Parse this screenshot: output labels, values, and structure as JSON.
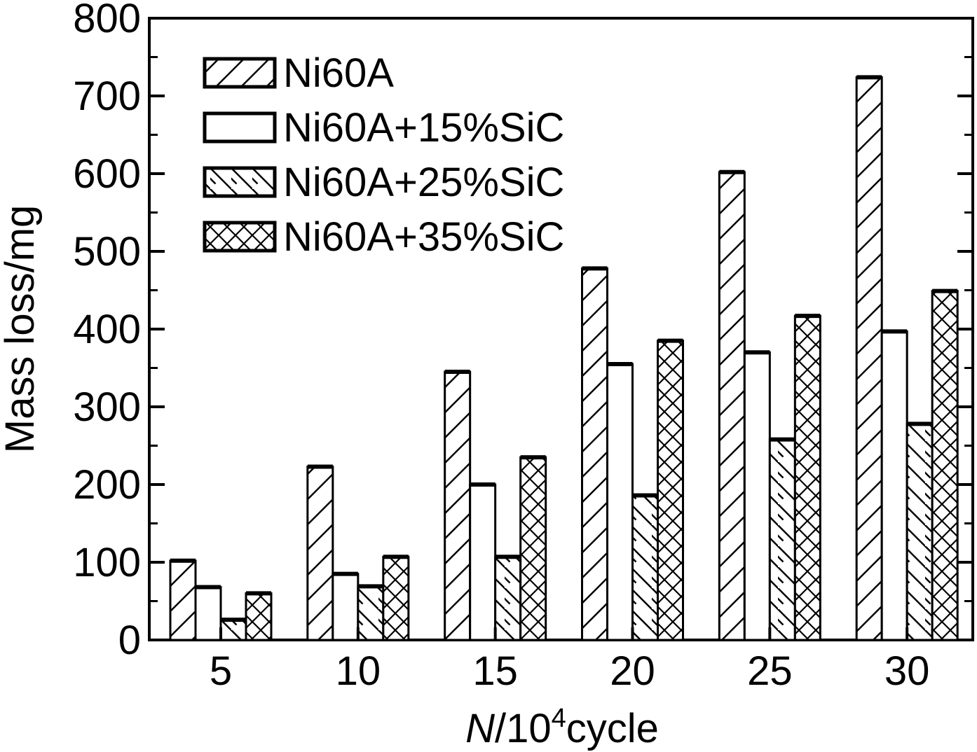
{
  "chart_data": {
    "type": "bar",
    "title": "",
    "xlabel_italic": "N",
    "xlabel_rest": "/10",
    "xlabel_sup": "4",
    "xlabel_tail": "cycle",
    "ylabel": "Mass loss/mg",
    "ylim": [
      0,
      800
    ],
    "yticks": [
      0,
      100,
      200,
      300,
      400,
      500,
      600,
      700,
      800
    ],
    "categories": [
      "5",
      "10",
      "15",
      "20",
      "25",
      "30"
    ],
    "series": [
      {
        "name": "Ni60A",
        "pattern": "diag-fwd",
        "values": [
          102,
          223,
          345,
          478,
          602,
          724
        ]
      },
      {
        "name": "Ni60A+15%SiC",
        "pattern": "none",
        "values": [
          68,
          85,
          200,
          355,
          370,
          397
        ]
      },
      {
        "name": "Ni60A+25%SiC",
        "pattern": "diag-back",
        "values": [
          26,
          69,
          107,
          186,
          258,
          278
        ]
      },
      {
        "name": "Ni60A+35%SiC",
        "pattern": "cross",
        "values": [
          60,
          107,
          235,
          385,
          417,
          449
        ]
      }
    ],
    "legend_position": "top-left",
    "grid": false
  }
}
